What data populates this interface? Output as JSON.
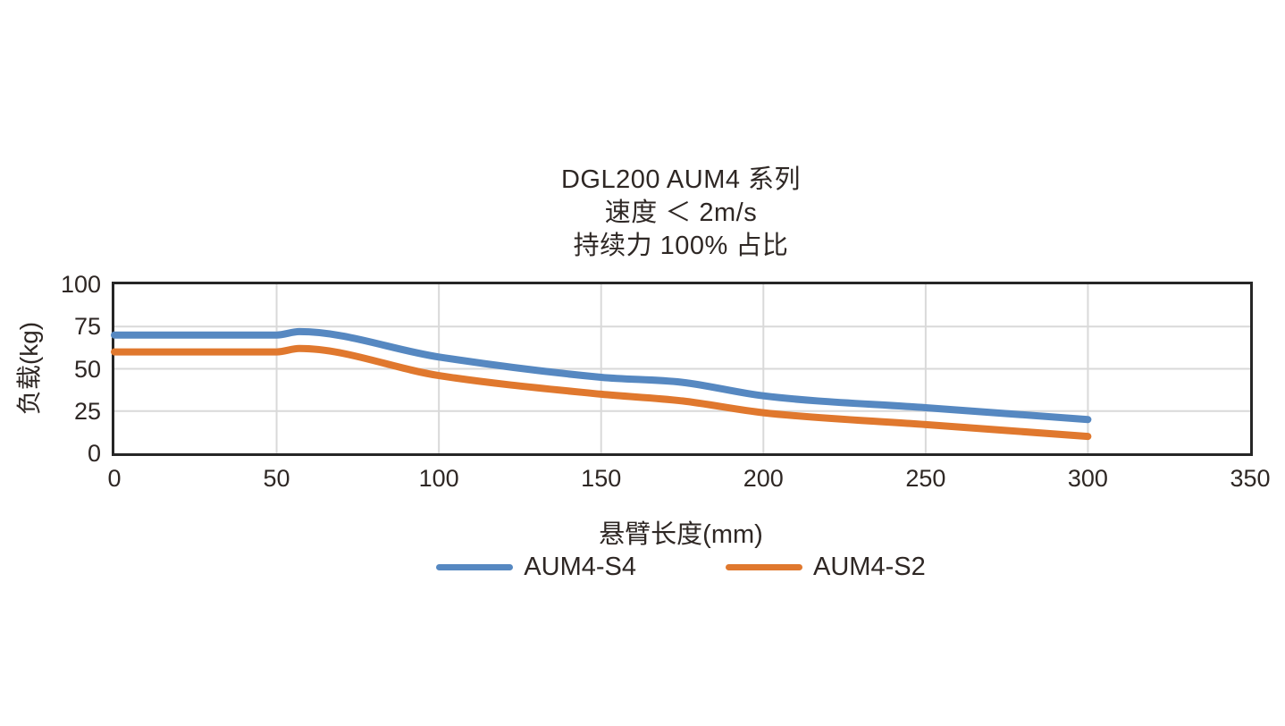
{
  "chart_data": {
    "type": "line",
    "title": "DGL200 AUM4 系列 / 速度 ＜ 2m/s / 持续力 100% 占比",
    "title_lines": [
      "DGL200 AUM4 系列",
      "速度 ＜ 2m/s",
      "持续力 100% 占比"
    ],
    "xlabel": "悬臂长度(mm)",
    "ylabel": "负载(kg)",
    "xlim": [
      0,
      350
    ],
    "ylim": [
      0,
      100
    ],
    "x_ticks": [
      0,
      50,
      100,
      150,
      200,
      250,
      300,
      350
    ],
    "y_ticks": [
      0,
      25,
      50,
      75,
      100
    ],
    "grid": true,
    "legend_position": "bottom",
    "series": [
      {
        "name": "AUM4-S4",
        "color": "#5688C1",
        "x": [
          0,
          50,
          57,
          100,
          150,
          175,
          200,
          250,
          300
        ],
        "y": [
          70,
          70,
          72,
          57,
          45,
          42,
          34,
          27,
          20
        ]
      },
      {
        "name": "AUM4-S2",
        "color": "#E0782E",
        "x": [
          0,
          50,
          57,
          100,
          150,
          175,
          200,
          250,
          300
        ],
        "y": [
          60,
          60,
          62,
          46,
          35,
          31,
          24,
          17,
          10
        ]
      }
    ]
  },
  "colors": {
    "grid": "#D9D9D9",
    "axis_border": "#262626",
    "text": "#2E2724",
    "background": "#FFFFFF"
  }
}
